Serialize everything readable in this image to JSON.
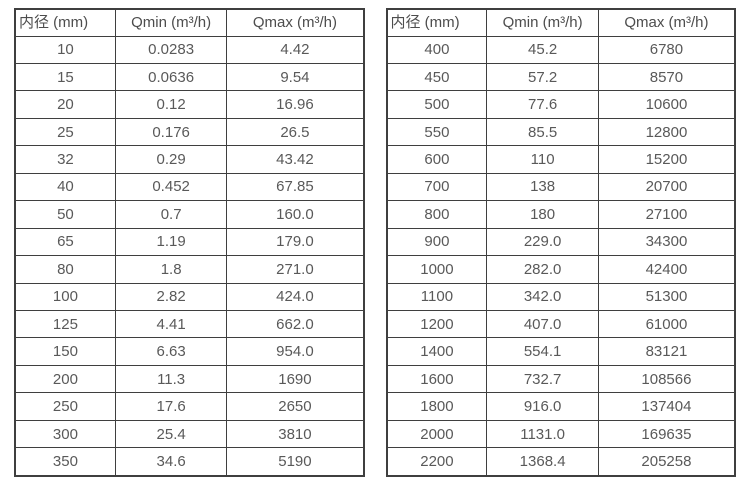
{
  "left_table": {
    "headers": [
      "内径 (mm)",
      "Qmin (m³/h)",
      "Qmax (m³/h)"
    ],
    "rows": [
      [
        "10",
        "0.0283",
        "4.42"
      ],
      [
        "15",
        "0.0636",
        "9.54"
      ],
      [
        "20",
        "0.12",
        "16.96"
      ],
      [
        "25",
        "0.176",
        "26.5"
      ],
      [
        "32",
        "0.29",
        "43.42"
      ],
      [
        "40",
        "0.452",
        "67.85"
      ],
      [
        "50",
        "0.7",
        "160.0"
      ],
      [
        "65",
        "1.19",
        "179.0"
      ],
      [
        "80",
        "1.8",
        "271.0"
      ],
      [
        "100",
        "2.82",
        "424.0"
      ],
      [
        "125",
        "4.41",
        "662.0"
      ],
      [
        "150",
        "6.63",
        "954.0"
      ],
      [
        "200",
        "11.3",
        "1690"
      ],
      [
        "250",
        "17.6",
        "2650"
      ],
      [
        "300",
        "25.4",
        "3810"
      ],
      [
        "350",
        "34.6",
        "5190"
      ]
    ]
  },
  "right_table": {
    "headers": [
      "内径 (mm)",
      "Qmin (m³/h)",
      "Qmax (m³/h)"
    ],
    "rows": [
      [
        "400",
        "45.2",
        "6780"
      ],
      [
        "450",
        "57.2",
        "8570"
      ],
      [
        "500",
        "77.6",
        "10600"
      ],
      [
        "550",
        "85.5",
        "12800"
      ],
      [
        "600",
        "110",
        "15200"
      ],
      [
        "700",
        "138",
        "20700"
      ],
      [
        "800",
        "180",
        "27100"
      ],
      [
        "900",
        "229.0",
        "34300"
      ],
      [
        "1000",
        "282.0",
        "42400"
      ],
      [
        "1100",
        "342.0",
        "51300"
      ],
      [
        "1200",
        "407.0",
        "61000"
      ],
      [
        "1400",
        "554.1",
        "83121"
      ],
      [
        "1600",
        "732.7",
        "108566"
      ],
      [
        "1800",
        "916.0",
        "137404"
      ],
      [
        "2000",
        "1131.0",
        "169635"
      ],
      [
        "2200",
        "1368.4",
        "205258"
      ]
    ]
  },
  "colors": {
    "border": "#3f3f3f",
    "text": "#595959",
    "background": "#ffffff"
  }
}
